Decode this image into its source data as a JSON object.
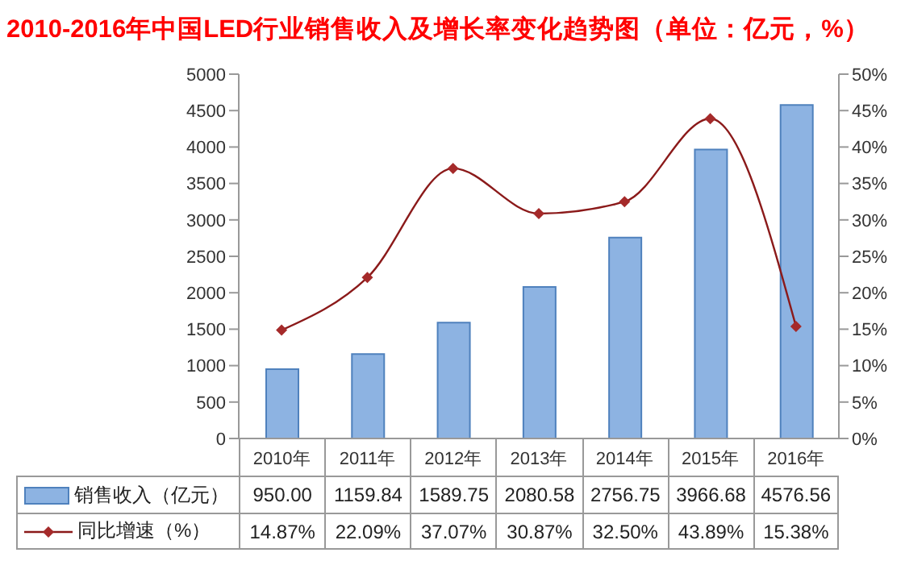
{
  "chart_data": {
    "type": "bar",
    "title": "2010-2016年中国LED行业销售收入及增长率变化趋势图（单位：亿元，%）",
    "categories": [
      "2010年",
      "2011年",
      "2012年",
      "2013年",
      "2014年",
      "2015年",
      "2016年"
    ],
    "series": [
      {
        "name": "销售收入（亿元）",
        "color": "#8db3e2",
        "values": [
          950.0,
          1159.84,
          1589.75,
          2080.58,
          2756.75,
          3966.68,
          4576.56
        ],
        "value_labels": [
          "950.00",
          "1159.84",
          "1589.75",
          "2080.58",
          "2756.75",
          "3966.68",
          "4576.56"
        ]
      },
      {
        "name": "同比增速（%）",
        "type": "line",
        "axis": "y2",
        "color": "#a52a2a",
        "values": [
          14.87,
          22.09,
          37.07,
          30.87,
          32.5,
          43.89,
          15.38
        ],
        "value_labels": [
          "14.87%",
          "22.09%",
          "37.07%",
          "30.87%",
          "32.50%",
          "43.89%",
          "15.38%"
        ]
      }
    ],
    "ylim": [
      0,
      5000
    ],
    "yticks": [
      0,
      500,
      1000,
      1500,
      2000,
      2500,
      3000,
      3500,
      4000,
      4500,
      5000
    ],
    "y2lim": [
      0,
      50
    ],
    "y2ticks": [
      {
        "value": 0,
        "label": "0%"
      },
      {
        "value": 5,
        "label": "5%"
      },
      {
        "value": 10,
        "label": "10%"
      },
      {
        "value": 15,
        "label": "15%"
      },
      {
        "value": 20,
        "label": "20%"
      },
      {
        "value": 25,
        "label": "25%"
      },
      {
        "value": 30,
        "label": "30%"
      },
      {
        "value": 35,
        "label": "35%"
      },
      {
        "value": 40,
        "label": "40%"
      },
      {
        "value": 45,
        "label": "45%"
      },
      {
        "value": 50,
        "label": "50%"
      }
    ],
    "marker": "diamond",
    "legend": "bottom"
  }
}
